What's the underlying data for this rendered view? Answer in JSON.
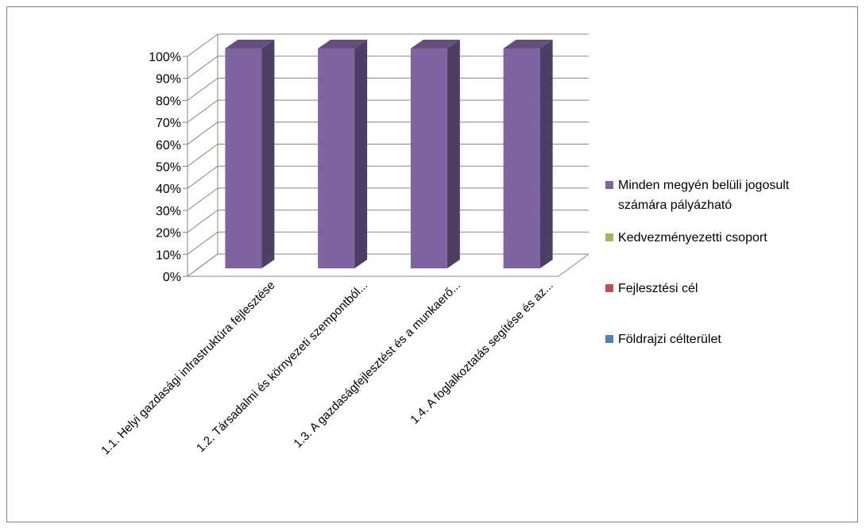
{
  "chart_data": {
    "type": "bar",
    "style": "3d-stacked-percent",
    "categories": [
      "1.1. Helyi gazdasági infrastruktúra fejlesztése",
      "1.2. Társadalmi és környezeti szempontból...",
      "1.3. A gazdaságfejlesztést és a munkaerő...",
      "1.4. A foglalkoztatás segítése és az..."
    ],
    "series": [
      {
        "name": "Földrajzi célterület",
        "color": "#4f81bd",
        "values": [
          0,
          0,
          0,
          0
        ]
      },
      {
        "name": "Fejlesztési cél",
        "color": "#c0504d",
        "values": [
          0,
          0,
          0,
          0
        ]
      },
      {
        "name": "Kedvezményezetti csoport",
        "color": "#9bbb59",
        "values": [
          0,
          0,
          0,
          0
        ]
      },
      {
        "name": "Minden megyén belüli jogosult számára pályázható",
        "color": "#8064a2",
        "values": [
          100,
          100,
          100,
          100
        ]
      }
    ],
    "yticks": [
      "0%",
      "10%",
      "20%",
      "30%",
      "40%",
      "50%",
      "60%",
      "70%",
      "80%",
      "90%",
      "100%"
    ],
    "ylim": [
      0,
      100
    ],
    "grid": true,
    "legend_position": "right",
    "legend_order": [
      "Minden megyén belüli jogosult számára pályázható",
      "Kedvezményezetti csoport",
      "Fejlesztési cél",
      "Földrajzi célterület"
    ]
  }
}
